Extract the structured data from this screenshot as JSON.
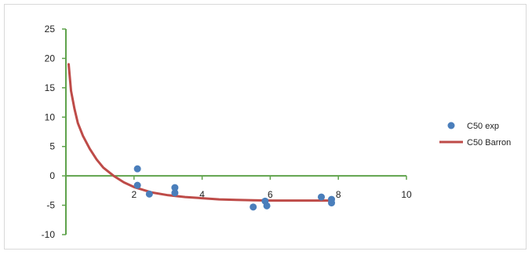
{
  "chart_data": {
    "type": "scatter",
    "title": "",
    "xlabel": "",
    "ylabel": "",
    "xlim": [
      0,
      10
    ],
    "ylim": [
      -10,
      25
    ],
    "x_ticks": [
      0,
      2,
      4,
      6,
      8,
      10
    ],
    "y_ticks": [
      -10,
      -5,
      0,
      5,
      10,
      15,
      20,
      25
    ],
    "x_tick_labels": [
      "",
      "2",
      "4",
      "6",
      "8",
      "10"
    ],
    "y_tick_labels": [
      "-10",
      "-5",
      "0",
      "5",
      "10",
      "15",
      "20",
      "25"
    ],
    "grid": false,
    "legend": "right",
    "series": [
      {
        "name": "C50 exp",
        "kind": "scatter",
        "color": "#4a7ebb",
        "x": [
          2.1,
          2.1,
          2.45,
          3.2,
          3.2,
          5.5,
          5.85,
          5.9,
          7.5,
          7.8,
          7.8
        ],
        "y": [
          1.2,
          -1.6,
          -3.1,
          -2.0,
          -2.9,
          -5.3,
          -4.3,
          -5.1,
          -3.6,
          -4.0,
          -4.6
        ]
      },
      {
        "name": "C50 Barron",
        "kind": "line",
        "color": "#be4b48",
        "x": [
          0.08,
          0.15,
          0.25,
          0.35,
          0.5,
          0.7,
          0.9,
          1.1,
          1.4,
          1.7,
          2.0,
          2.5,
          3.0,
          3.5,
          4.0,
          4.5,
          5.0,
          5.5,
          6.0,
          6.5,
          7.0,
          7.5,
          7.8
        ],
        "y": [
          19.0,
          14.5,
          11.5,
          9.0,
          6.8,
          4.6,
          2.8,
          1.4,
          0.0,
          -1.1,
          -1.9,
          -2.8,
          -3.3,
          -3.6,
          -3.8,
          -4.0,
          -4.1,
          -4.15,
          -4.2,
          -4.2,
          -4.2,
          -4.2,
          -4.2
        ]
      }
    ]
  }
}
